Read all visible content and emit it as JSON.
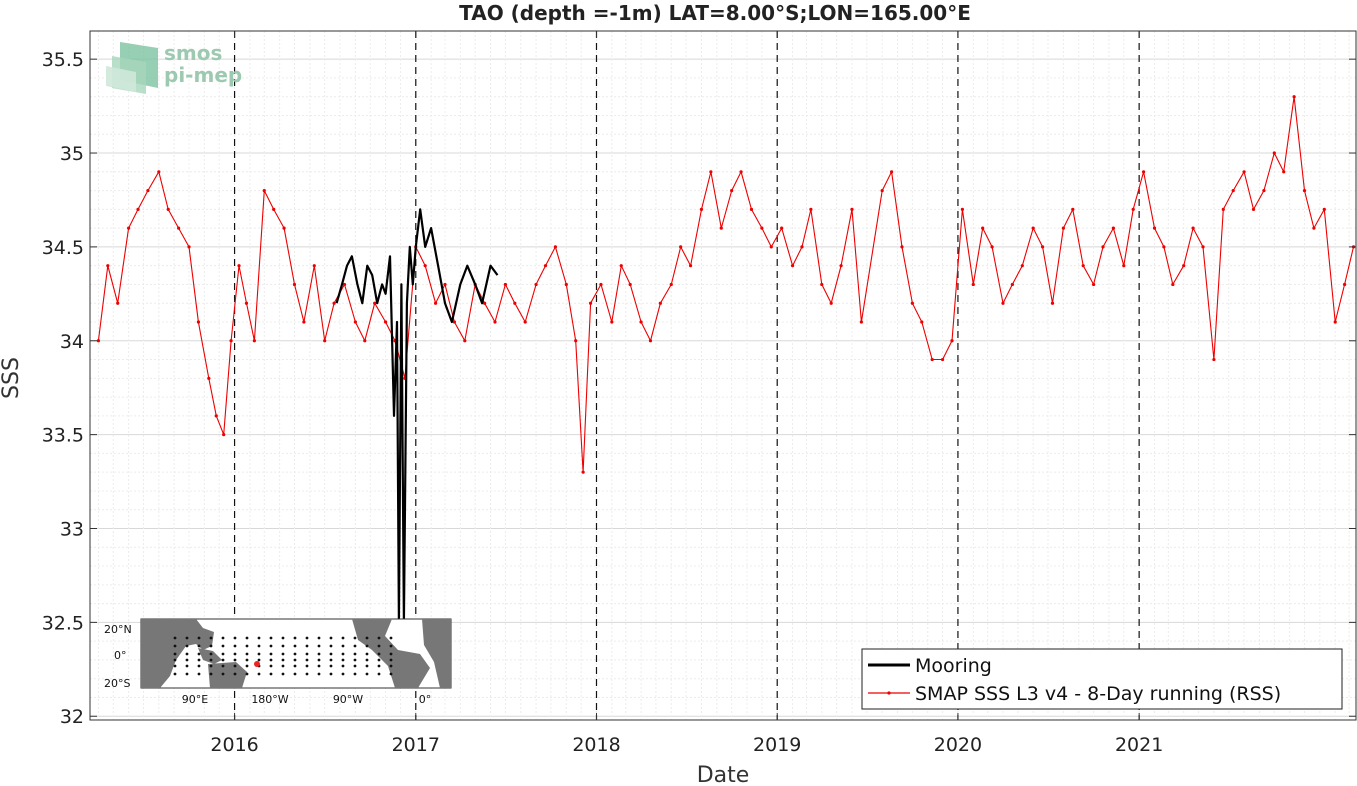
{
  "chart_data": {
    "type": "line",
    "title": "TAO (depth =-1m) LAT=8.00°S;LON=165.00°E",
    "xlabel": "Date",
    "ylabel": "SSS",
    "xlim": [
      "2015-03-15",
      "2022-03-15"
    ],
    "ylim": [
      31.98,
      35.65
    ],
    "yticks": [
      32,
      32.5,
      33,
      33.5,
      34,
      34.5,
      35,
      35.5
    ],
    "ytick_labels": [
      "32",
      "32.5",
      "33",
      "33.5",
      "34",
      "34.5",
      "35",
      "35.5"
    ],
    "xticks": [
      "2016-01-01",
      "2017-01-01",
      "2018-01-01",
      "2019-01-01",
      "2020-01-01",
      "2021-01-01"
    ],
    "xtick_labels": [
      "2016",
      "2017",
      "2018",
      "2019",
      "2020",
      "2021"
    ],
    "vertical_dashed_lines": [
      "2016-01-01",
      "2017-01-01",
      "2018-01-01",
      "2019-01-01",
      "2020-01-01",
      "2021-01-01"
    ],
    "grid": true,
    "legend_position": "bottom-right",
    "series": [
      {
        "name": "Mooring",
        "color": "#000000",
        "style": "line",
        "x": [
          "2016-07-25",
          "2016-08-05",
          "2016-08-15",
          "2016-08-25",
          "2016-09-05",
          "2016-09-15",
          "2016-09-25",
          "2016-10-05",
          "2016-10-15",
          "2016-10-25",
          "2016-11-01",
          "2016-11-10",
          "2016-11-18",
          "2016-11-24",
          "2016-11-28",
          "2016-12-03",
          "2016-12-08",
          "2016-12-14",
          "2016-12-20",
          "2016-12-26",
          "2017-01-01",
          "2017-01-10",
          "2017-01-20",
          "2017-02-01",
          "2017-02-15",
          "2017-03-01",
          "2017-03-15",
          "2017-04-01",
          "2017-04-15",
          "2017-05-01",
          "2017-05-15",
          "2017-06-01",
          "2017-06-15"
        ],
        "y": [
          34.2,
          34.3,
          34.4,
          34.45,
          34.3,
          34.2,
          34.4,
          34.35,
          34.2,
          34.3,
          34.25,
          34.45,
          33.6,
          34.1,
          32.5,
          34.3,
          32.5,
          34.2,
          34.5,
          34.3,
          34.5,
          34.7,
          34.5,
          34.6,
          34.4,
          34.2,
          34.1,
          34.3,
          34.4,
          34.3,
          34.2,
          34.4,
          34.35
        ]
      },
      {
        "name": "SMAP SSS L3 v4 - 8-Day running (RSS)",
        "color": "#ee0000",
        "style": "line-dots",
        "x": [
          "2015-04-01",
          "2015-04-20",
          "2015-05-10",
          "2015-06-01",
          "2015-06-20",
          "2015-07-10",
          "2015-08-01",
          "2015-08-20",
          "2015-09-10",
          "2015-10-01",
          "2015-10-20",
          "2015-11-10",
          "2015-11-25",
          "2015-12-10",
          "2015-12-25",
          "2016-01-10",
          "2016-01-25",
          "2016-02-10",
          "2016-03-01",
          "2016-03-20",
          "2016-04-10",
          "2016-05-01",
          "2016-05-20",
          "2016-06-10",
          "2016-07-01",
          "2016-07-20",
          "2016-08-10",
          "2016-09-01",
          "2016-09-20",
          "2016-10-10",
          "2016-11-01",
          "2016-11-20",
          "2016-12-10",
          "2017-01-01",
          "2017-01-20",
          "2017-02-10",
          "2017-03-01",
          "2017-03-20",
          "2017-04-10",
          "2017-05-01",
          "2017-05-20",
          "2017-06-10",
          "2017-07-01",
          "2017-07-20",
          "2017-08-10",
          "2017-09-01",
          "2017-09-20",
          "2017-10-10",
          "2017-11-01",
          "2017-11-20",
          "2017-12-05",
          "2017-12-20",
          "2018-01-10",
          "2018-02-01",
          "2018-02-20",
          "2018-03-10",
          "2018-04-01",
          "2018-04-20",
          "2018-05-10",
          "2018-06-01",
          "2018-06-20",
          "2018-07-10",
          "2018-08-01",
          "2018-08-20",
          "2018-09-10",
          "2018-10-01",
          "2018-10-20",
          "2018-11-10",
          "2018-12-01",
          "2018-12-20",
          "2019-01-10",
          "2019-02-01",
          "2019-02-20",
          "2019-03-10",
          "2019-04-01",
          "2019-04-20",
          "2019-05-10",
          "2019-06-01",
          "2019-06-20",
          "2019-08-01",
          "2019-08-20",
          "2019-09-10",
          "2019-10-01",
          "2019-10-20",
          "2019-11-10",
          "2019-12-01",
          "2019-12-20",
          "2020-01-10",
          "2020-02-01",
          "2020-02-20",
          "2020-03-10",
          "2020-04-01",
          "2020-04-20",
          "2020-05-10",
          "2020-06-01",
          "2020-06-20",
          "2020-07-10",
          "2020-08-01",
          "2020-08-20",
          "2020-09-10",
          "2020-10-01",
          "2020-10-20",
          "2020-11-10",
          "2020-12-01",
          "2020-12-20",
          "2021-01-10",
          "2021-02-01",
          "2021-02-20",
          "2021-03-10",
          "2021-04-01",
          "2021-04-20",
          "2021-05-10",
          "2021-06-01",
          "2021-06-20",
          "2021-07-10",
          "2021-08-01",
          "2021-08-20",
          "2021-09-10",
          "2021-10-01",
          "2021-10-20",
          "2021-11-10",
          "2021-12-01",
          "2021-12-20",
          "2022-01-10",
          "2022-02-01",
          "2022-02-20",
          "2022-03-10"
        ],
        "y": [
          34.0,
          34.4,
          34.2,
          34.6,
          34.7,
          34.8,
          34.9,
          34.7,
          34.6,
          34.5,
          34.1,
          33.8,
          33.6,
          33.5,
          34.0,
          34.4,
          34.2,
          34.0,
          34.8,
          34.7,
          34.6,
          34.3,
          34.1,
          34.4,
          34.0,
          34.2,
          34.3,
          34.1,
          34.0,
          34.2,
          34.1,
          34.0,
          33.8,
          34.5,
          34.4,
          34.2,
          34.3,
          34.1,
          34.0,
          34.3,
          34.2,
          34.1,
          34.3,
          34.2,
          34.1,
          34.3,
          34.4,
          34.5,
          34.3,
          34.0,
          33.3,
          34.2,
          34.3,
          34.1,
          34.4,
          34.3,
          34.1,
          34.0,
          34.2,
          34.3,
          34.5,
          34.4,
          34.7,
          34.9,
          34.6,
          34.8,
          34.9,
          34.7,
          34.6,
          34.5,
          34.6,
          34.4,
          34.5,
          34.7,
          34.3,
          34.2,
          34.4,
          34.7,
          34.1,
          34.8,
          34.9,
          34.5,
          34.2,
          34.1,
          33.9,
          33.9,
          34.0,
          34.7,
          34.3,
          34.6,
          34.5,
          34.2,
          34.3,
          34.4,
          34.6,
          34.5,
          34.2,
          34.6,
          34.7,
          34.4,
          34.3,
          34.5,
          34.6,
          34.4,
          34.7,
          34.9,
          34.6,
          34.5,
          34.3,
          34.4,
          34.6,
          34.5,
          33.9,
          34.7,
          34.8,
          34.9,
          34.7,
          34.8,
          35.0,
          34.9,
          35.3,
          34.8,
          34.6,
          34.7,
          34.1,
          34.3,
          34.5
        ]
      }
    ]
  },
  "logo": {
    "line1": "smos",
    "line2": "pi-mep"
  },
  "inset_map": {
    "lat_labels": [
      "20°N",
      "0°",
      "20°S"
    ],
    "lon_labels": [
      "90°E",
      "180°W",
      "90°W",
      "0°"
    ]
  }
}
